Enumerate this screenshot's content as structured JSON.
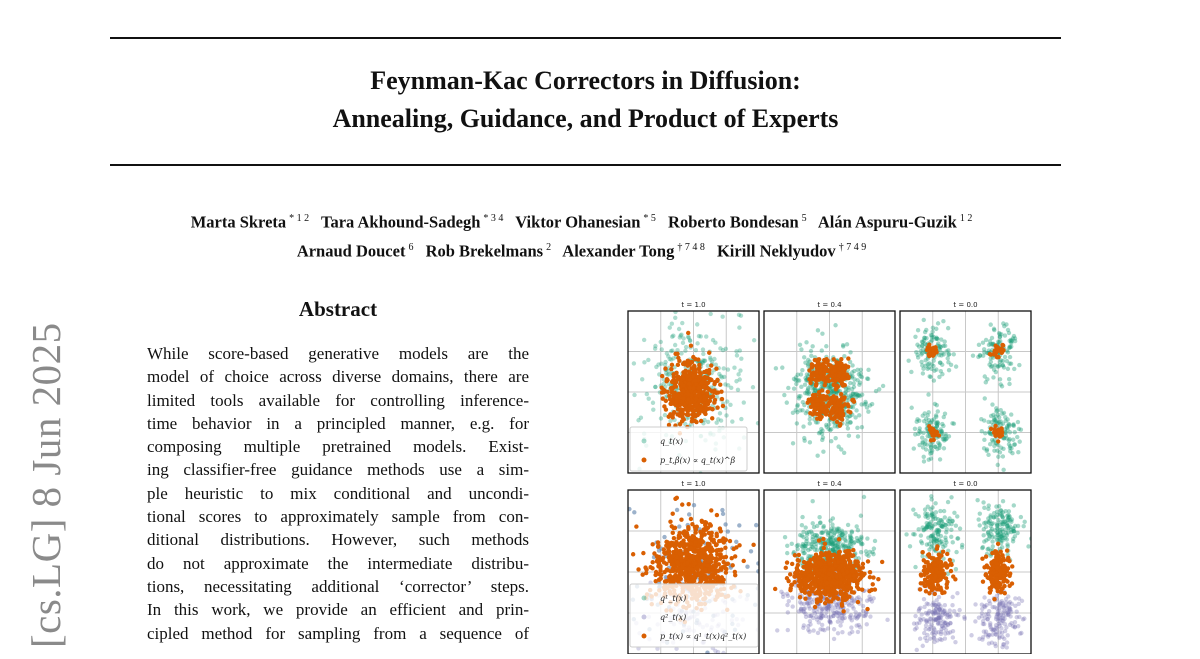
{
  "title": {
    "line1": "Feynman-Kac Correctors in Diffusion:",
    "line2": "Annealing, Guidance, and Product of Experts"
  },
  "authors": [
    {
      "name": "Marta Skreta",
      "aff": "* 1 2"
    },
    {
      "name": "Tara Akhound-Sadegh",
      "aff": "* 3 4"
    },
    {
      "name": "Viktor Ohanesian",
      "aff": "* 5"
    },
    {
      "name": "Roberto Bondesan",
      "aff": "5"
    },
    {
      "name": "Alán Aspuru-Guzik",
      "aff": "1 2"
    },
    {
      "name": "Arnaud Doucet",
      "aff": "6"
    },
    {
      "name": "Rob Brekelmans",
      "aff": "2"
    },
    {
      "name": "Alexander Tong",
      "aff": "† 7 4 8"
    },
    {
      "name": "Kirill Neklyudov",
      "aff": "† 7 4 9"
    }
  ],
  "arxiv_stamp": "[cs.LG]  8 Jun 2025",
  "abstract": {
    "heading": "Abstract",
    "lines": [
      "While score-based generative models are the",
      "model of choice across diverse domains, there are",
      "limited tools available for controlling inference-",
      "time behavior in a principled manner, e.g.  for",
      "composing multiple pretrained models.  Exist-",
      "ing classifier-free guidance methods use a sim-",
      "ple heuristic to mix conditional and uncondi-",
      "tional scores to approximately sample from con-",
      "ditional distributions.  However, such methods",
      "do not approximate the intermediate distribu-",
      "tions, necessitating additional ‘corrector’ steps.",
      "In this work, we provide an efficient and prin-",
      "cipled method for sampling from a sequence of"
    ]
  },
  "figure": {
    "colors": {
      "green": "#1b9e77",
      "orange": "#d95f02",
      "purple": "#7570b3",
      "blue": "#5a7fa8"
    },
    "row1": {
      "titles": [
        "t = 1.0",
        "t = 0.4",
        "t = 0.0"
      ],
      "legend": [
        "q_t(x)",
        "p_t,β(x) ∝ q_t(x)^β"
      ]
    },
    "row2": {
      "titles": [
        "t = 1.0",
        "t = 0.4",
        "t = 0.0"
      ],
      "legend": [
        "q¹_t(x)",
        "q²_t(x)",
        "p_t(x) ∝ q¹_t(x)q²_t(x)"
      ]
    }
  }
}
